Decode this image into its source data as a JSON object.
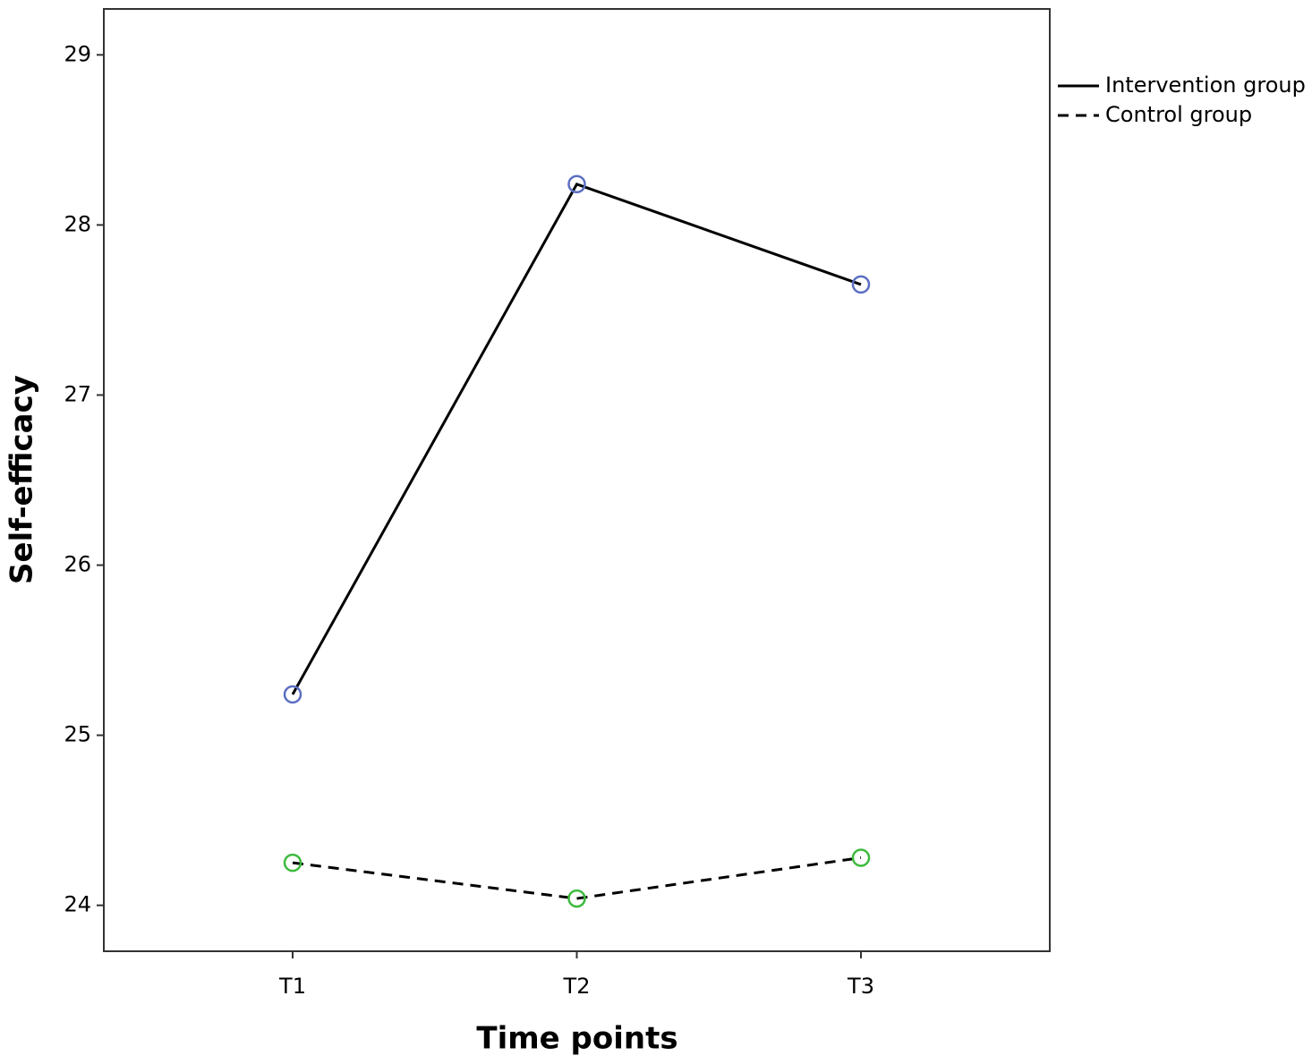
{
  "chart_data": {
    "type": "line",
    "x_label": "Time points",
    "y_label": "Self-efficacy",
    "categories": [
      "T1",
      "T2",
      "T3"
    ],
    "series": [
      {
        "name": "Intervention group",
        "color": "#5b6fc2",
        "line_color": "#000000",
        "line_style": "solid",
        "values": [
          25.24,
          28.24,
          27.65
        ]
      },
      {
        "name": "Control group",
        "color": "#3dba3d",
        "line_color": "#000000",
        "line_style": "dashed",
        "values": [
          24.25,
          24.04,
          24.28
        ]
      }
    ],
    "ylim": [
      23.73,
      29.27
    ],
    "yticks": [
      24,
      25,
      26,
      27,
      28,
      29
    ],
    "grid": false,
    "legend": "right"
  }
}
